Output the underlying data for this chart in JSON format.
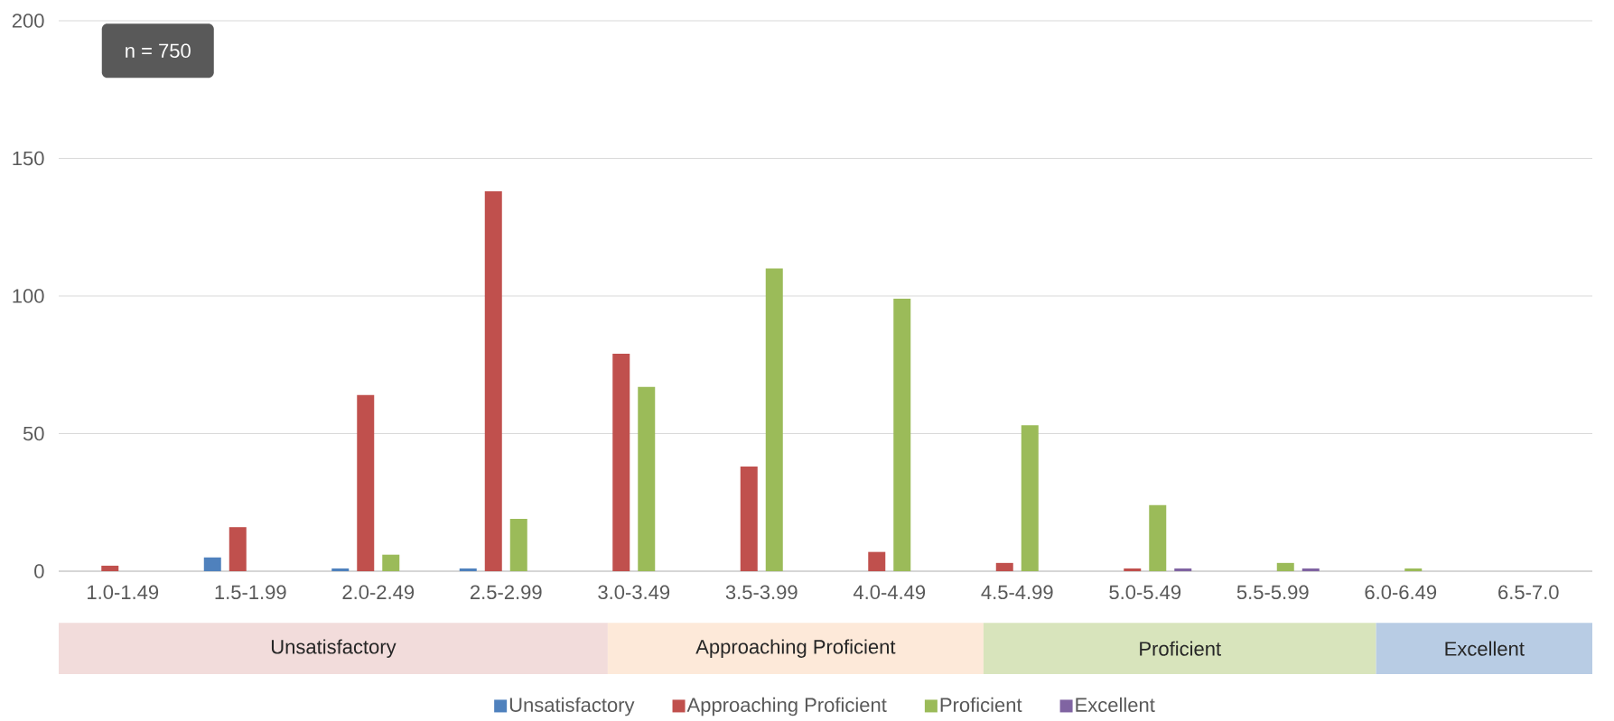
{
  "chart_data": {
    "type": "bar",
    "categories": [
      "1.0-1.49",
      "1.5-1.99",
      "2.0-2.49",
      "2.5-2.99",
      "3.0-3.49",
      "3.5-3.99",
      "4.0-4.49",
      "4.5-4.99",
      "5.0-5.49",
      "5.5-5.99",
      "6.0-6.49",
      "6.5-7.0"
    ],
    "series": [
      {
        "name": "Unsatisfactory",
        "color": "#4f81bd",
        "values": [
          null,
          5,
          1,
          1,
          null,
          null,
          null,
          null,
          null,
          null,
          null,
          null
        ]
      },
      {
        "name": "Approaching Proficient",
        "color": "#c0504d",
        "values": [
          2,
          16,
          64,
          138,
          79,
          38,
          7,
          3,
          1,
          null,
          null,
          null
        ]
      },
      {
        "name": "Proficient",
        "color": "#9bbb59",
        "values": [
          null,
          null,
          6,
          19,
          67,
          110,
          99,
          53,
          24,
          3,
          1,
          null
        ]
      },
      {
        "name": "Excellent",
        "color": "#8064a2",
        "values": [
          null,
          null,
          null,
          null,
          null,
          null,
          null,
          null,
          1,
          1,
          null,
          null
        ]
      }
    ],
    "ylim": [
      0,
      200
    ],
    "yticks": [
      0,
      50,
      100,
      150,
      200
    ],
    "grid": "y",
    "legend": "bottom",
    "annotations": [
      "n = 750",
      "Unsatisfactory",
      "Approaching Proficient",
      "Proficient",
      "Excellent"
    ]
  }
}
